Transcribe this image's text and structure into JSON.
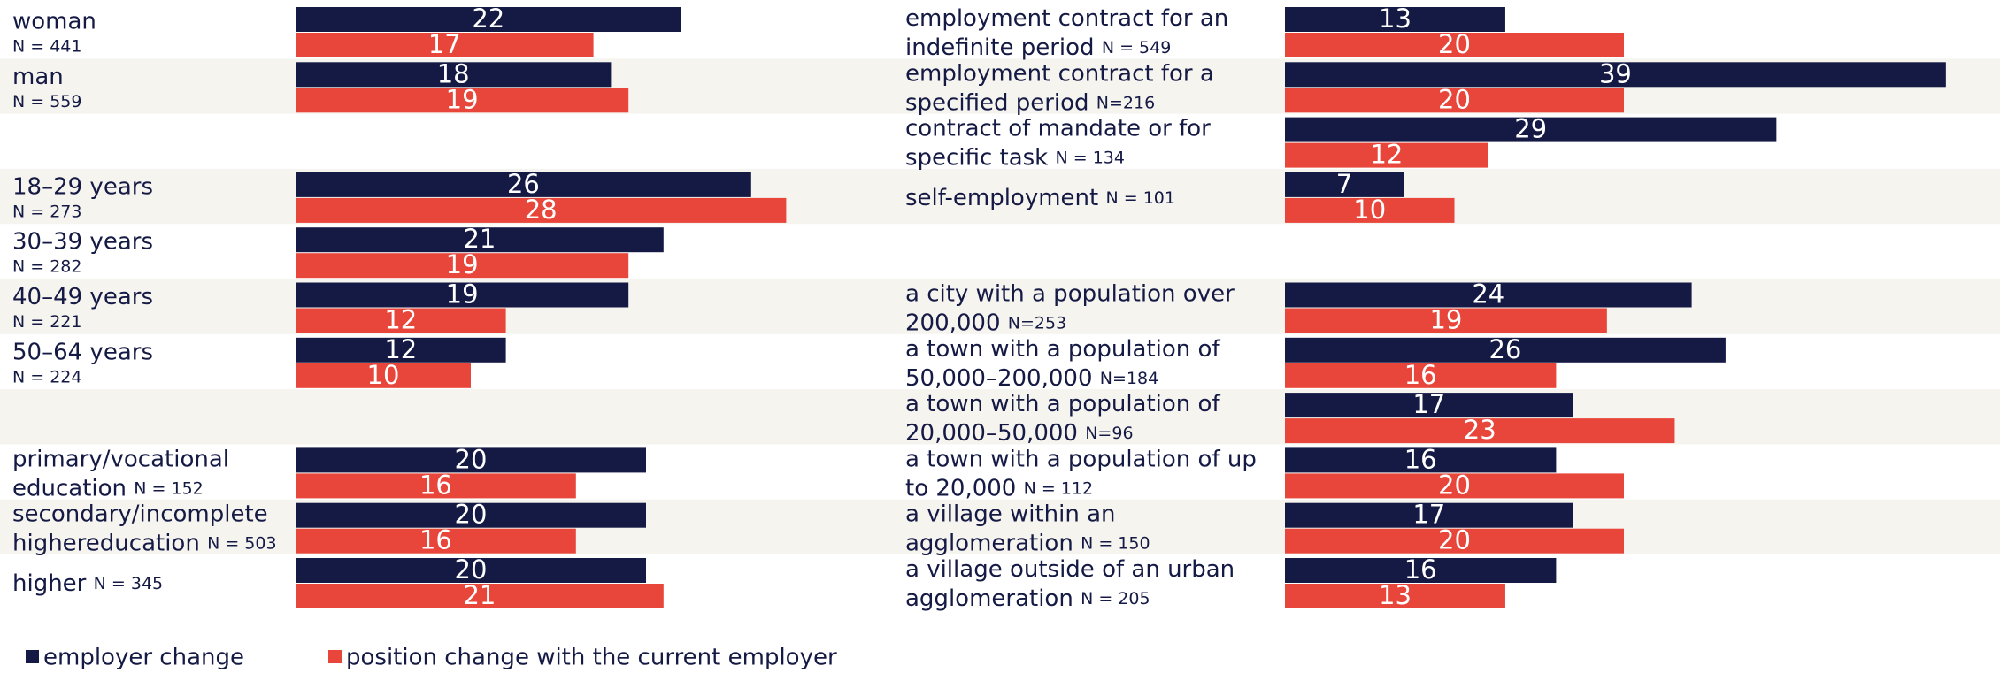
{
  "legend": [
    {
      "name": "employer change",
      "color": "#151a45"
    },
    {
      "name": "position change with the current employer",
      "color": "#e8463a"
    }
  ],
  "chart_data": [
    {
      "type": "bar",
      "categories": [
        [
          "woman"
        ],
        [
          "man"
        ],
        null,
        [
          "18–29 years"
        ],
        [
          "30–39 years"
        ],
        [
          "40–49 years"
        ],
        [
          "50–64 years"
        ],
        null,
        [
          "primary/vocational",
          "education"
        ],
        [
          "secondary/incomplete",
          "highereducation"
        ],
        [
          "higher"
        ]
      ],
      "n_labels": [
        "N = 441",
        "N = 559",
        null,
        "N = 273",
        "N = 282",
        "N = 221",
        "N = 224",
        null,
        "N = 152",
        "N = 503",
        "N = 345"
      ],
      "series": [
        {
          "values": [
            22,
            18,
            null,
            26,
            21,
            19,
            12,
            null,
            20,
            20,
            20
          ]
        },
        {
          "values": [
            17,
            19,
            null,
            28,
            19,
            12,
            10,
            null,
            16,
            16,
            21
          ]
        }
      ]
    },
    {
      "type": "bar",
      "categories": [
        [
          "employment contract for an",
          "indefinite period"
        ],
        [
          "employment contract for a",
          "specified period"
        ],
        [
          "contract of mandate or for",
          "specific task"
        ],
        [
          "self-employment"
        ],
        null,
        [
          "a city with a population over",
          "200,000"
        ],
        [
          "a town with a population of",
          "50,000–200,000"
        ],
        [
          "a town with a population of",
          "20,000–50,000"
        ],
        [
          "a town with a population of up",
          "to 20,000"
        ],
        [
          "a village within an",
          "agglomeration"
        ],
        [
          "a village outside of an urban",
          "agglomeration"
        ]
      ],
      "n_labels": [
        "N = 549",
        "N=216",
        "N = 134",
        "N = 101",
        null,
        "N=253",
        "N=184",
        "N=96",
        "N = 112",
        "N = 150",
        "N = 205"
      ],
      "series": [
        {
          "values": [
            13,
            39,
            29,
            7,
            null,
            24,
            26,
            17,
            16,
            17,
            16
          ]
        },
        {
          "values": [
            20,
            20,
            12,
            10,
            null,
            19,
            16,
            23,
            20,
            20,
            13
          ]
        }
      ]
    }
  ]
}
